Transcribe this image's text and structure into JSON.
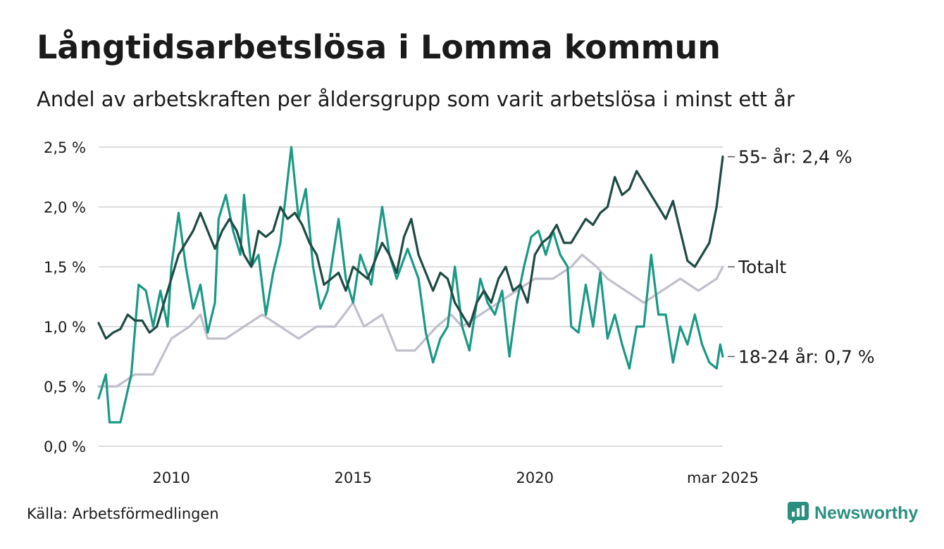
{
  "header": {
    "title": "Långtidsarbetslösa i Lomma kommun",
    "subtitle": "Andel av arbetskraften per åldersgrupp som varit arbetslösa i minst ett år"
  },
  "footer": {
    "source": "Källa: Arbetsförmedlingen",
    "brand": "Newsworthy",
    "brand_icon": "newsworthy-logo-icon"
  },
  "chart_data": {
    "type": "line",
    "title": "Långtidsarbetslösa i Lomma kommun",
    "subtitle": "Andel av arbetskraften per åldersgrupp som varit arbetslösa i minst ett år",
    "x_unit": "year",
    "xlim": [
      2008.0,
      2025.17
    ],
    "ylim": [
      0,
      2.5
    ],
    "y_ticks": [
      0,
      0.5,
      1.0,
      1.5,
      2.0,
      2.5
    ],
    "y_tick_labels": [
      "0,0 %",
      "0,5 %",
      "1,0 %",
      "1,5 %",
      "2,0 %",
      "2,5 %"
    ],
    "x_ticks": [
      2010,
      2015,
      2020,
      2025.17
    ],
    "x_tick_labels": [
      "2010",
      "2015",
      "2020",
      "mar 2025"
    ],
    "grid": "horizontal",
    "legend": "end-labels-right",
    "series": [
      {
        "name": "Totalt",
        "end_label": "Totalt",
        "color": "#c2bfcb",
        "points": [
          [
            2008.0,
            0.5
          ],
          [
            2008.5,
            0.5
          ],
          [
            2009.0,
            0.6
          ],
          [
            2009.5,
            0.6
          ],
          [
            2010.0,
            0.9
          ],
          [
            2010.5,
            1.0
          ],
          [
            2010.8,
            1.1
          ],
          [
            2011.0,
            0.9
          ],
          [
            2011.5,
            0.9
          ],
          [
            2012.0,
            1.0
          ],
          [
            2012.5,
            1.1
          ],
          [
            2013.0,
            1.0
          ],
          [
            2013.5,
            0.9
          ],
          [
            2014.0,
            1.0
          ],
          [
            2014.5,
            1.0
          ],
          [
            2015.0,
            1.2
          ],
          [
            2015.3,
            1.0
          ],
          [
            2015.8,
            1.1
          ],
          [
            2016.2,
            0.8
          ],
          [
            2016.7,
            0.8
          ],
          [
            2017.0,
            0.9
          ],
          [
            2017.3,
            1.0
          ],
          [
            2017.7,
            1.1
          ],
          [
            2018.0,
            1.0
          ],
          [
            2018.5,
            1.1
          ],
          [
            2019.0,
            1.2
          ],
          [
            2019.5,
            1.3
          ],
          [
            2020.0,
            1.4
          ],
          [
            2020.5,
            1.4
          ],
          [
            2021.0,
            1.5
          ],
          [
            2021.3,
            1.6
          ],
          [
            2021.7,
            1.5
          ],
          [
            2022.0,
            1.4
          ],
          [
            2022.5,
            1.3
          ],
          [
            2023.0,
            1.2
          ],
          [
            2023.5,
            1.3
          ],
          [
            2024.0,
            1.4
          ],
          [
            2024.5,
            1.3
          ],
          [
            2025.0,
            1.4
          ],
          [
            2025.17,
            1.5
          ]
        ]
      },
      {
        "name": "18-24 år",
        "end_label": "18-24 år: 0,7 %",
        "color": "#1a9985",
        "points": [
          [
            2008.0,
            0.4
          ],
          [
            2008.2,
            0.6
          ],
          [
            2008.3,
            0.2
          ],
          [
            2008.6,
            0.2
          ],
          [
            2008.9,
            0.6
          ],
          [
            2009.1,
            1.35
          ],
          [
            2009.3,
            1.3
          ],
          [
            2009.5,
            1.0
          ],
          [
            2009.7,
            1.3
          ],
          [
            2009.9,
            1.0
          ],
          [
            2010.0,
            1.5
          ],
          [
            2010.2,
            1.95
          ],
          [
            2010.4,
            1.5
          ],
          [
            2010.6,
            1.15
          ],
          [
            2010.8,
            1.35
          ],
          [
            2011.0,
            0.95
          ],
          [
            2011.2,
            1.2
          ],
          [
            2011.3,
            1.9
          ],
          [
            2011.5,
            2.1
          ],
          [
            2011.7,
            1.8
          ],
          [
            2011.9,
            1.6
          ],
          [
            2012.0,
            2.1
          ],
          [
            2012.2,
            1.5
          ],
          [
            2012.4,
            1.6
          ],
          [
            2012.6,
            1.1
          ],
          [
            2012.8,
            1.45
          ],
          [
            2013.0,
            1.7
          ],
          [
            2013.3,
            2.5
          ],
          [
            2013.5,
            1.9
          ],
          [
            2013.7,
            2.15
          ],
          [
            2013.9,
            1.5
          ],
          [
            2014.1,
            1.15
          ],
          [
            2014.3,
            1.3
          ],
          [
            2014.6,
            1.9
          ],
          [
            2014.8,
            1.4
          ],
          [
            2015.0,
            1.2
          ],
          [
            2015.2,
            1.6
          ],
          [
            2015.5,
            1.35
          ],
          [
            2015.8,
            2.0
          ],
          [
            2016.0,
            1.6
          ],
          [
            2016.2,
            1.4
          ],
          [
            2016.5,
            1.65
          ],
          [
            2016.8,
            1.4
          ],
          [
            2017.0,
            0.95
          ],
          [
            2017.2,
            0.7
          ],
          [
            2017.4,
            0.9
          ],
          [
            2017.6,
            1.0
          ],
          [
            2017.8,
            1.5
          ],
          [
            2018.0,
            1.0
          ],
          [
            2018.2,
            0.8
          ],
          [
            2018.5,
            1.4
          ],
          [
            2018.7,
            1.2
          ],
          [
            2018.9,
            1.1
          ],
          [
            2019.1,
            1.3
          ],
          [
            2019.3,
            0.75
          ],
          [
            2019.5,
            1.2
          ],
          [
            2019.7,
            1.5
          ],
          [
            2019.9,
            1.75
          ],
          [
            2020.1,
            1.8
          ],
          [
            2020.3,
            1.6
          ],
          [
            2020.5,
            1.8
          ],
          [
            2020.7,
            1.6
          ],
          [
            2020.9,
            1.5
          ],
          [
            2021.0,
            1.0
          ],
          [
            2021.2,
            0.95
          ],
          [
            2021.4,
            1.35
          ],
          [
            2021.6,
            1.0
          ],
          [
            2021.8,
            1.45
          ],
          [
            2022.0,
            0.9
          ],
          [
            2022.2,
            1.1
          ],
          [
            2022.4,
            0.85
          ],
          [
            2022.6,
            0.65
          ],
          [
            2022.8,
            1.0
          ],
          [
            2023.0,
            1.0
          ],
          [
            2023.2,
            1.6
          ],
          [
            2023.4,
            1.1
          ],
          [
            2023.6,
            1.1
          ],
          [
            2023.8,
            0.7
          ],
          [
            2024.0,
            1.0
          ],
          [
            2024.2,
            0.85
          ],
          [
            2024.4,
            1.1
          ],
          [
            2024.6,
            0.85
          ],
          [
            2024.8,
            0.7
          ],
          [
            2025.0,
            0.65
          ],
          [
            2025.1,
            0.85
          ],
          [
            2025.17,
            0.75
          ]
        ]
      },
      {
        "name": "55- år",
        "end_label": "55- år: 2,4 %",
        "color": "#1f4a44",
        "points": [
          [
            2008.0,
            1.03
          ],
          [
            2008.2,
            0.9
          ],
          [
            2008.4,
            0.95
          ],
          [
            2008.6,
            0.98
          ],
          [
            2008.8,
            1.1
          ],
          [
            2009.0,
            1.05
          ],
          [
            2009.2,
            1.05
          ],
          [
            2009.4,
            0.95
          ],
          [
            2009.6,
            1.0
          ],
          [
            2009.8,
            1.2
          ],
          [
            2010.0,
            1.4
          ],
          [
            2010.2,
            1.6
          ],
          [
            2010.4,
            1.7
          ],
          [
            2010.6,
            1.8
          ],
          [
            2010.8,
            1.95
          ],
          [
            2011.0,
            1.8
          ],
          [
            2011.2,
            1.65
          ],
          [
            2011.4,
            1.8
          ],
          [
            2011.6,
            1.9
          ],
          [
            2011.8,
            1.8
          ],
          [
            2012.0,
            1.6
          ],
          [
            2012.2,
            1.5
          ],
          [
            2012.4,
            1.8
          ],
          [
            2012.6,
            1.75
          ],
          [
            2012.8,
            1.8
          ],
          [
            2013.0,
            2.0
          ],
          [
            2013.2,
            1.9
          ],
          [
            2013.4,
            1.95
          ],
          [
            2013.6,
            1.85
          ],
          [
            2013.8,
            1.7
          ],
          [
            2014.0,
            1.6
          ],
          [
            2014.2,
            1.35
          ],
          [
            2014.4,
            1.4
          ],
          [
            2014.6,
            1.45
          ],
          [
            2014.8,
            1.3
          ],
          [
            2015.0,
            1.5
          ],
          [
            2015.2,
            1.45
          ],
          [
            2015.4,
            1.4
          ],
          [
            2015.6,
            1.55
          ],
          [
            2015.8,
            1.7
          ],
          [
            2016.0,
            1.6
          ],
          [
            2016.2,
            1.45
          ],
          [
            2016.4,
            1.75
          ],
          [
            2016.6,
            1.9
          ],
          [
            2016.8,
            1.6
          ],
          [
            2017.0,
            1.45
          ],
          [
            2017.2,
            1.3
          ],
          [
            2017.4,
            1.45
          ],
          [
            2017.6,
            1.4
          ],
          [
            2017.8,
            1.2
          ],
          [
            2018.0,
            1.1
          ],
          [
            2018.2,
            1.0
          ],
          [
            2018.4,
            1.2
          ],
          [
            2018.6,
            1.3
          ],
          [
            2018.8,
            1.2
          ],
          [
            2019.0,
            1.4
          ],
          [
            2019.2,
            1.5
          ],
          [
            2019.4,
            1.3
          ],
          [
            2019.6,
            1.35
          ],
          [
            2019.8,
            1.2
          ],
          [
            2020.0,
            1.6
          ],
          [
            2020.2,
            1.7
          ],
          [
            2020.4,
            1.75
          ],
          [
            2020.6,
            1.85
          ],
          [
            2020.8,
            1.7
          ],
          [
            2021.0,
            1.7
          ],
          [
            2021.2,
            1.8
          ],
          [
            2021.4,
            1.9
          ],
          [
            2021.6,
            1.85
          ],
          [
            2021.8,
            1.95
          ],
          [
            2022.0,
            2.0
          ],
          [
            2022.2,
            2.25
          ],
          [
            2022.4,
            2.1
          ],
          [
            2022.6,
            2.15
          ],
          [
            2022.8,
            2.3
          ],
          [
            2023.0,
            2.2
          ],
          [
            2023.2,
            2.1
          ],
          [
            2023.4,
            2.0
          ],
          [
            2023.6,
            1.9
          ],
          [
            2023.8,
            2.05
          ],
          [
            2024.0,
            1.8
          ],
          [
            2024.2,
            1.55
          ],
          [
            2024.4,
            1.5
          ],
          [
            2024.6,
            1.6
          ],
          [
            2024.8,
            1.7
          ],
          [
            2025.0,
            2.0
          ],
          [
            2025.1,
            2.25
          ],
          [
            2025.17,
            2.42
          ]
        ]
      }
    ]
  }
}
